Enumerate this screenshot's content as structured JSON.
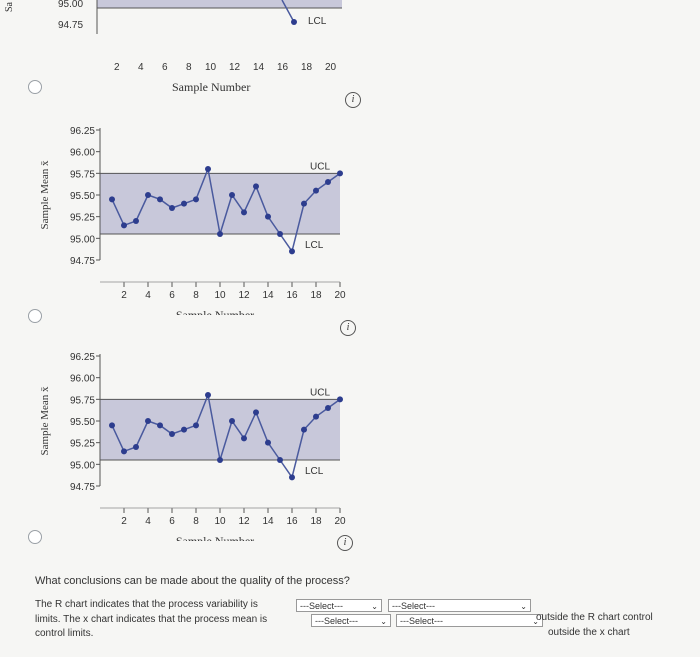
{
  "charts": {
    "chart_top": {
      "ytick_labels": [
        "95.00",
        "94.75"
      ],
      "ucl_label": "",
      "lcl_label": "LCL",
      "ylabel": "Sa",
      "xlabel": "Sample Number"
    },
    "chart_mid": {
      "ytick_labels": [
        "96.25",
        "96.00",
        "95.75",
        "95.50",
        "95.25",
        "95.00",
        "94.75"
      ],
      "ucl_label": "UCL",
      "lcl_label": "LCL",
      "ylabel": "Sample Mean x̄",
      "xlabel": "Sample Number"
    },
    "chart_bottom": {
      "ytick_labels": [
        "96.25",
        "96.00",
        "95.75",
        "95.50",
        "95.25",
        "95.00",
        "94.75"
      ],
      "ucl_label": "UCL",
      "lcl_label": "LCL",
      "ylabel": "Sample Mean x̄",
      "xlabel": "Sample Number"
    },
    "xtick_labels": [
      "2",
      "4",
      "6",
      "8",
      "10",
      "12",
      "14",
      "16",
      "18",
      "20"
    ]
  },
  "chart_data": [
    {
      "type": "line",
      "x": [
        15,
        16
      ],
      "series": [
        {
          "values": [
            95.02,
            94.85
          ]
        }
      ],
      "ylabel": "Sa",
      "xlabel": "Sample Number",
      "ylim": [
        94.75,
        95.0
      ],
      "xlim": [
        0,
        20
      ],
      "lines": {
        "LCL": 94.9
      }
    },
    {
      "type": "line",
      "x": [
        1,
        2,
        3,
        4,
        5,
        6,
        7,
        8,
        9,
        10,
        11,
        12,
        13,
        14,
        15,
        16,
        17,
        18,
        19,
        20
      ],
      "series": [
        {
          "values": [
            95.45,
            95.15,
            95.2,
            95.5,
            95.45,
            95.35,
            95.4,
            95.45,
            95.8,
            95.05,
            95.5,
            95.3,
            95.6,
            95.25,
            95.05,
            94.85,
            95.4,
            95.55,
            95.65,
            95.75
          ]
        }
      ],
      "ylabel": "Sample Mean x̄",
      "xlabel": "Sample Number",
      "ylim": [
        94.75,
        96.25
      ],
      "xlim": [
        0,
        20
      ],
      "lines": {
        "UCL": 95.75,
        "LCL": 95.05
      }
    },
    {
      "type": "line",
      "x": [
        1,
        2,
        3,
        4,
        5,
        6,
        7,
        8,
        9,
        10,
        11,
        12,
        13,
        14,
        15,
        16,
        17,
        18,
        19,
        20
      ],
      "series": [
        {
          "values": [
            95.45,
            95.15,
            95.2,
            95.5,
            95.45,
            95.35,
            95.4,
            95.45,
            95.8,
            95.05,
            95.5,
            95.3,
            95.6,
            95.25,
            95.05,
            94.85,
            95.4,
            95.55,
            95.65,
            95.75
          ]
        }
      ],
      "ylabel": "Sample Mean x̄",
      "xlabel": "Sample Number",
      "ylim": [
        94.75,
        96.25
      ],
      "xlim": [
        0,
        20
      ],
      "lines": {
        "UCL": 95.75,
        "LCL": 95.05
      }
    }
  ],
  "info_glyph": "i",
  "question": {
    "prompt": "What conclusions can be made about the quality of the process?",
    "line1_a": "The R chart indicates that the process variability is",
    "line2_a": "limits. The x chart indicates that the process mean is",
    "line3_a": "control limits.",
    "right1": "outside the R chart control",
    "right2": "outside the x chart",
    "select_placeholder": "---Select---"
  }
}
